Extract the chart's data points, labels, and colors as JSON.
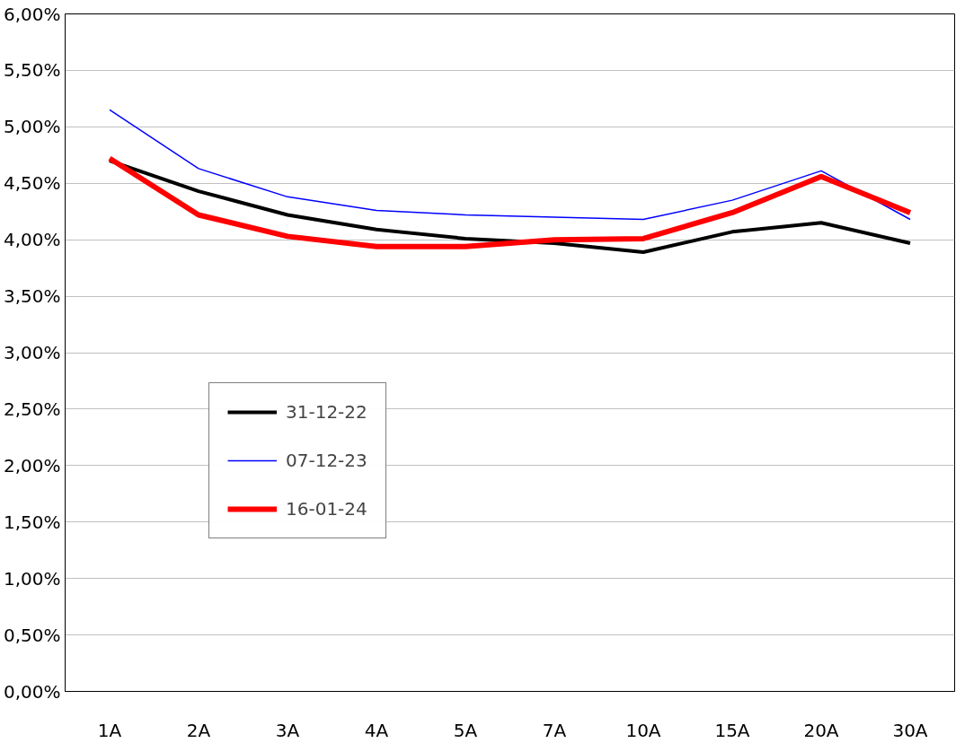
{
  "chart_data": {
    "type": "line",
    "categories": [
      "1A",
      "2A",
      "3A",
      "4A",
      "5A",
      "7A",
      "10A",
      "15A",
      "20A",
      "30A"
    ],
    "series": [
      {
        "name": "31-12-22",
        "color": "#000000",
        "values": [
          4.7,
          4.43,
          4.22,
          4.09,
          4.01,
          3.97,
          3.89,
          4.07,
          4.15,
          3.97
        ]
      },
      {
        "name": "07-12-23",
        "color": "#0000ff",
        "values": [
          5.15,
          4.63,
          4.38,
          4.26,
          4.22,
          4.2,
          4.18,
          4.35,
          4.61,
          4.18
        ]
      },
      {
        "name": "16-01-24",
        "color": "#ff0000",
        "values": [
          4.72,
          4.22,
          4.03,
          3.94,
          3.94,
          4.0,
          4.01,
          4.24,
          4.56,
          4.24
        ]
      }
    ],
    "ylim": [
      0,
      6
    ],
    "yticks": [
      {
        "value": 0,
        "label": "0,00%"
      },
      {
        "value": 0.5,
        "label": "0,50%"
      },
      {
        "value": 1,
        "label": "1,00%"
      },
      {
        "value": 1.5,
        "label": "1,50%"
      },
      {
        "value": 2,
        "label": "2,00%"
      },
      {
        "value": 2.5,
        "label": "2,50%"
      },
      {
        "value": 3,
        "label": "3,00%"
      },
      {
        "value": 3.5,
        "label": "3,50%"
      },
      {
        "value": 4,
        "label": "4,00%"
      },
      {
        "value": 4.5,
        "label": "4,50%"
      },
      {
        "value": 5,
        "label": "5,00%"
      },
      {
        "value": 5.5,
        "label": "5,50%"
      },
      {
        "value": 6,
        "label": "6,00%"
      }
    ],
    "grid": "y",
    "legend": "left",
    "marker": "none",
    "line_style": "solid"
  }
}
